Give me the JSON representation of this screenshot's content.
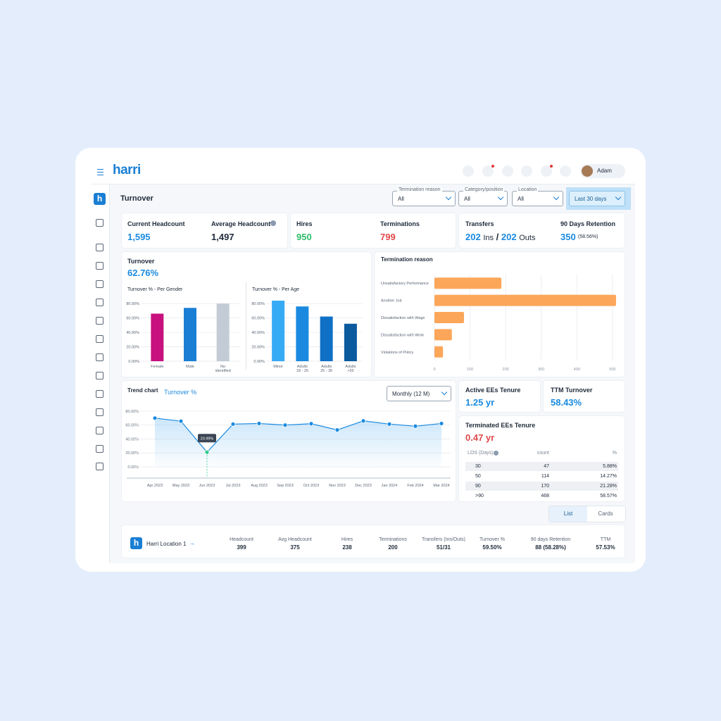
{
  "header": {
    "logo": "harri",
    "user": "Adam"
  },
  "page_title": "Turnover",
  "filters": [
    {
      "label": "Termination reason",
      "value": "All"
    },
    {
      "label": "Category/position",
      "value": "All"
    },
    {
      "label": "Location",
      "value": "All"
    }
  ],
  "date_range": "Last 30 days",
  "kpis": [
    {
      "label": "Current Headcount",
      "value": "1,595"
    },
    {
      "label": "Average Headcount",
      "value": "1,497"
    },
    {
      "label": "Hires",
      "value": "950"
    },
    {
      "label": "Terminations",
      "value": "799"
    }
  ],
  "transfers": {
    "label": "Transfers",
    "ins": "202",
    "ins_unit": "Ins",
    "sep": "/",
    "outs": "202",
    "outs_unit": "Outs"
  },
  "retention": {
    "label": "90 Days Retention",
    "value": "350",
    "pct": "(58.56%)"
  },
  "turnover": {
    "label": "Turnover",
    "value": "62.76%"
  },
  "trend_controls": {
    "metric": "Turnover %",
    "period": "Monthly (12 M)"
  },
  "tenure": {
    "active_label": "Active EEs Tenure",
    "active_value": "1.25 yr",
    "ttm_label": "TTM Turnover",
    "ttm_value": "58.43%",
    "terminated_label": "Terminated EEs Tenure",
    "terminated_value": "0.47 yr"
  },
  "los_table": {
    "headers": [
      "LOS (Days)",
      "count",
      "%"
    ],
    "rows": [
      [
        "30",
        "47",
        "5.88%"
      ],
      [
        "50",
        "114",
        "14.27%"
      ],
      [
        "90",
        "170",
        "21.28%"
      ],
      [
        ">90",
        "468",
        "58.57%"
      ]
    ]
  },
  "view_tabs": [
    "List",
    "Cards"
  ],
  "location_row": {
    "name": "Harri Location 1",
    "columns": [
      {
        "label": "Headcount",
        "value": "399"
      },
      {
        "label": "Avg Headcount",
        "value": "375"
      },
      {
        "label": "Hires",
        "value": "238"
      },
      {
        "label": "Terminations",
        "value": "200"
      },
      {
        "label": "Transfers (Ins/Outs)",
        "value": "51/31"
      },
      {
        "label": "Turnover %",
        "value": "59.50%"
      },
      {
        "label": "90 days Retention",
        "value": "88 (58.28%)"
      },
      {
        "label": "TTM",
        "value": "57.53%"
      }
    ]
  },
  "chart_data": [
    {
      "type": "bar",
      "title": "Turnover % - Per Gender",
      "categories": [
        "Female",
        "Male",
        "No identified"
      ],
      "values": [
        66,
        74,
        80
      ],
      "colors": [
        "#c8117e",
        "#1a7fd4",
        "#c3cbd6"
      ],
      "ylim": [
        0,
        85
      ],
      "yticks": [
        {
          "value": 0,
          "label": "0.00%"
        },
        {
          "value": 20,
          "label": "20.00%"
        },
        {
          "value": 40,
          "label": "40.00%"
        },
        {
          "value": 60,
          "label": "60.00%"
        },
        {
          "value": 80,
          "label": "80.00%"
        }
      ],
      "grid": true
    },
    {
      "type": "bar",
      "title": "Turnover % - Per Age",
      "categories": [
        "Minor",
        "Adults 18 - 25",
        "Adults 25 - 35",
        "Adults >35"
      ],
      "values": [
        84,
        76,
        62,
        52
      ],
      "colors": [
        "#35aaf5",
        "#1a8ae0",
        "#1070c6",
        "#0b5a9e"
      ],
      "ylim": [
        0,
        85
      ],
      "yticks": [
        {
          "value": 0,
          "label": "0.00%"
        },
        {
          "value": 20,
          "label": "20.00%"
        },
        {
          "value": 40,
          "label": "40.00%"
        },
        {
          "value": 60,
          "label": "60.00%"
        },
        {
          "value": 80,
          "label": "80.00%"
        }
      ],
      "grid": true
    },
    {
      "type": "barh",
      "title": "Termination reason",
      "categories": [
        "Unsatisfactory Performance",
        "Another Job",
        "Dissatisfaction with Wage",
        "Dissatisfaction with Work",
        "Violations of Policy"
      ],
      "values": [
        188,
        510,
        83,
        49,
        24
      ],
      "color": "#fca65a",
      "xlim": [
        0,
        520
      ],
      "xticks": [
        0,
        100,
        200,
        300,
        400,
        500
      ],
      "grid": true
    },
    {
      "type": "line",
      "title": "Trend chart",
      "categories": [
        "Apr 2023",
        "May 2023",
        "Jun 2023",
        "Jul 2023",
        "Aug 2023",
        "Sep 2023",
        "Oct 2023",
        "Nov 2023",
        "Dec 2023",
        "Jan 2024",
        "Feb 2024",
        "Mar 2024"
      ],
      "values": [
        70,
        65.6,
        20.99,
        61.4,
        62.3,
        60,
        62,
        53,
        66,
        61.4,
        58.4,
        62.3
      ],
      "value_labels": [
        null,
        null,
        "20.99%",
        null,
        null,
        null,
        null,
        null,
        null,
        null,
        null,
        null
      ],
      "color": "#1a8ae0",
      "highlight_color": "#2ecc8a",
      "ylim": [
        0,
        85
      ],
      "yticks": [
        {
          "value": 0,
          "label": "0.00%"
        },
        {
          "value": 20,
          "label": "20.00%"
        },
        {
          "value": 40,
          "label": "40.00%"
        },
        {
          "value": 60,
          "label": "60.00%"
        },
        {
          "value": 80,
          "label": "80.00%"
        }
      ],
      "grid": true
    }
  ]
}
